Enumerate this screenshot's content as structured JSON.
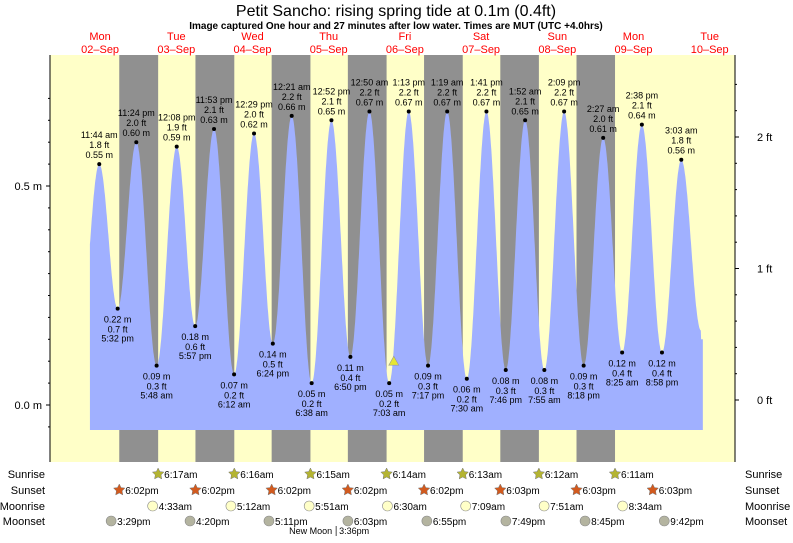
{
  "chart_data": {
    "type": "area",
    "title": "Petit Sancho: rising  spring tide at 0.1m (0.4ft)",
    "subtitle": "Image captured One hour and 27 minutes after low water. Times are MUT (UTC +4.0hrs)",
    "current_height_m": 0.1,
    "captured_hours_after_low": 1.45,
    "days": [
      {
        "dow": "Mon",
        "date": "02–Sep"
      },
      {
        "dow": "Tue",
        "date": "03–Sep"
      },
      {
        "dow": "Wed",
        "date": "04–Sep"
      },
      {
        "dow": "Thu",
        "date": "05–Sep"
      },
      {
        "dow": "Fri",
        "date": "06–Sep"
      },
      {
        "dow": "Sat",
        "date": "07–Sep"
      },
      {
        "dow": "Sun",
        "date": "08–Sep"
      },
      {
        "dow": "Mon",
        "date": "09–Sep"
      },
      {
        "dow": "Tue",
        "date": "10–Sep"
      }
    ],
    "y_left": {
      "ticks": [
        {
          "value": 0.0,
          "label": "0.0 m"
        },
        {
          "value": 0.5,
          "label": "0.5 m"
        }
      ],
      "ylim_m": [
        -0.06,
        0.8
      ]
    },
    "y_right": {
      "ticks": [
        {
          "value": 0,
          "label": "0 ft"
        },
        {
          "value": 1,
          "label": "1 ft"
        },
        {
          "value": 2,
          "label": "2 ft"
        }
      ]
    },
    "extremes": [
      {
        "day": 0,
        "type": "high",
        "time": "11:44 am",
        "ft": "1.8 ft",
        "m": 0.55
      },
      {
        "day": 0,
        "type": "low",
        "time": "5:32 pm",
        "ft": "0.7 ft",
        "m": 0.22
      },
      {
        "day": 0,
        "type": "high",
        "time": "11:24 pm",
        "ft": "2.0 ft",
        "m": 0.6
      },
      {
        "day": 1,
        "type": "low",
        "time": "5:48 am",
        "ft": "0.3 ft",
        "m": 0.09
      },
      {
        "day": 1,
        "type": "high",
        "time": "12:08 pm",
        "ft": "1.9 ft",
        "m": 0.59
      },
      {
        "day": 1,
        "type": "low",
        "time": "5:57 pm",
        "ft": "0.6 ft",
        "m": 0.18
      },
      {
        "day": 1,
        "type": "high",
        "time": "11:53 pm",
        "ft": "2.1 ft",
        "m": 0.63
      },
      {
        "day": 2,
        "type": "low",
        "time": "6:12 am",
        "ft": "0.2 ft",
        "m": 0.07
      },
      {
        "day": 2,
        "type": "high",
        "time": "12:29 pm",
        "ft": "2.0 ft",
        "m": 0.62
      },
      {
        "day": 2,
        "type": "low",
        "time": "6:24 pm",
        "ft": "0.5 ft",
        "m": 0.14
      },
      {
        "day": 3,
        "type": "high",
        "time": "12:21 am",
        "ft": "2.2 ft",
        "m": 0.66
      },
      {
        "day": 3,
        "type": "low",
        "time": "6:38 am",
        "ft": "0.2 ft",
        "m": 0.05
      },
      {
        "day": 3,
        "type": "high",
        "time": "12:52 pm",
        "ft": "2.1 ft",
        "m": 0.65
      },
      {
        "day": 3,
        "type": "low",
        "time": "6:50 pm",
        "ft": "0.4 ft",
        "m": 0.11
      },
      {
        "day": 4,
        "type": "high",
        "time": "12:50 am",
        "ft": "2.2 ft",
        "m": 0.67
      },
      {
        "day": 4,
        "type": "low",
        "time": "7:03 am",
        "ft": "0.2 ft",
        "m": 0.05
      },
      {
        "day": 4,
        "type": "high",
        "time": "1:13 pm",
        "ft": "2.2 ft",
        "m": 0.67
      },
      {
        "day": 4,
        "type": "low",
        "time": "7:17 pm",
        "ft": "0.3 ft",
        "m": 0.09
      },
      {
        "day": 5,
        "type": "high",
        "time": "1:19 am",
        "ft": "2.2 ft",
        "m": 0.67
      },
      {
        "day": 5,
        "type": "low",
        "time": "7:30 am",
        "ft": "0.2 ft",
        "m": 0.06
      },
      {
        "day": 5,
        "type": "high",
        "time": "1:41 pm",
        "ft": "2.2 ft",
        "m": 0.67
      },
      {
        "day": 5,
        "type": "low",
        "time": "7:46 pm",
        "ft": "0.3 ft",
        "m": 0.08
      },
      {
        "day": 6,
        "type": "high",
        "time": "1:52 am",
        "ft": "2.1 ft",
        "m": 0.65
      },
      {
        "day": 6,
        "type": "low",
        "time": "7:55 am",
        "ft": "0.3 ft",
        "m": 0.08
      },
      {
        "day": 6,
        "type": "high",
        "time": "2:09 pm",
        "ft": "2.2 ft",
        "m": 0.67
      },
      {
        "day": 6,
        "type": "low",
        "time": "8:18 pm",
        "ft": "0.3 ft",
        "m": 0.09
      },
      {
        "day": 7,
        "type": "high",
        "time": "2:27 am",
        "ft": "2.0 ft",
        "m": 0.61
      },
      {
        "day": 7,
        "type": "low",
        "time": "8:25 am",
        "ft": "0.4 ft",
        "m": 0.12
      },
      {
        "day": 7,
        "type": "high",
        "time": "2:38 pm",
        "ft": "2.1 ft",
        "m": 0.64
      },
      {
        "day": 7,
        "type": "low",
        "time": "8:58 pm",
        "ft": "0.4 ft",
        "m": 0.12
      },
      {
        "day": 8,
        "type": "high",
        "time": "3:03 am",
        "ft": "1.8 ft",
        "m": 0.56
      }
    ],
    "astro": {
      "labels": {
        "sunrise": "Sunrise",
        "sunset": "Sunset",
        "moonrise": "Moonrise",
        "moonset": "Moonset"
      },
      "sunrise": [
        {
          "day": 1,
          "time": "6:17am"
        },
        {
          "day": 2,
          "time": "6:16am"
        },
        {
          "day": 3,
          "time": "6:15am"
        },
        {
          "day": 4,
          "time": "6:14am"
        },
        {
          "day": 5,
          "time": "6:13am"
        },
        {
          "day": 6,
          "time": "6:12am"
        },
        {
          "day": 7,
          "time": "6:11am"
        }
      ],
      "sunset": [
        {
          "day": 0,
          "time": "6:02pm"
        },
        {
          "day": 1,
          "time": "6:02pm"
        },
        {
          "day": 2,
          "time": "6:02pm"
        },
        {
          "day": 3,
          "time": "6:02pm"
        },
        {
          "day": 4,
          "time": "6:02pm"
        },
        {
          "day": 5,
          "time": "6:03pm"
        },
        {
          "day": 6,
          "time": "6:03pm"
        },
        {
          "day": 7,
          "time": "6:03pm"
        }
      ],
      "moonrise": [
        {
          "day": 1,
          "time": "4:33am"
        },
        {
          "day": 2,
          "time": "5:12am"
        },
        {
          "day": 3,
          "time": "5:51am"
        },
        {
          "day": 4,
          "time": "6:30am"
        },
        {
          "day": 5,
          "time": "7:09am"
        },
        {
          "day": 6,
          "time": "7:51am"
        },
        {
          "day": 7,
          "time": "8:34am"
        }
      ],
      "moonset": [
        {
          "day": 0,
          "time": "3:29pm"
        },
        {
          "day": 1,
          "time": "4:20pm"
        },
        {
          "day": 2,
          "time": "5:11pm"
        },
        {
          "day": 3,
          "time": "6:03pm"
        },
        {
          "day": 4,
          "time": "6:55pm"
        },
        {
          "day": 5,
          "time": "7:49pm"
        },
        {
          "day": 6,
          "time": "8:45pm"
        },
        {
          "day": 7,
          "time": "9:42pm"
        }
      ],
      "moon_phase": {
        "day": 3,
        "time": "3:36pm",
        "label": "New Moon",
        "time_label": "3:36pm"
      }
    },
    "colors": {
      "day": "#ffffc8",
      "night": "#909090",
      "water": "#a0b0ff",
      "date": "#ff0000",
      "sunrise": "#b4b432",
      "sunset": "#d25a1e",
      "moonrise": "#ffffc8",
      "moonset": "#b4b4a0",
      "marker": "#e6e632"
    }
  }
}
